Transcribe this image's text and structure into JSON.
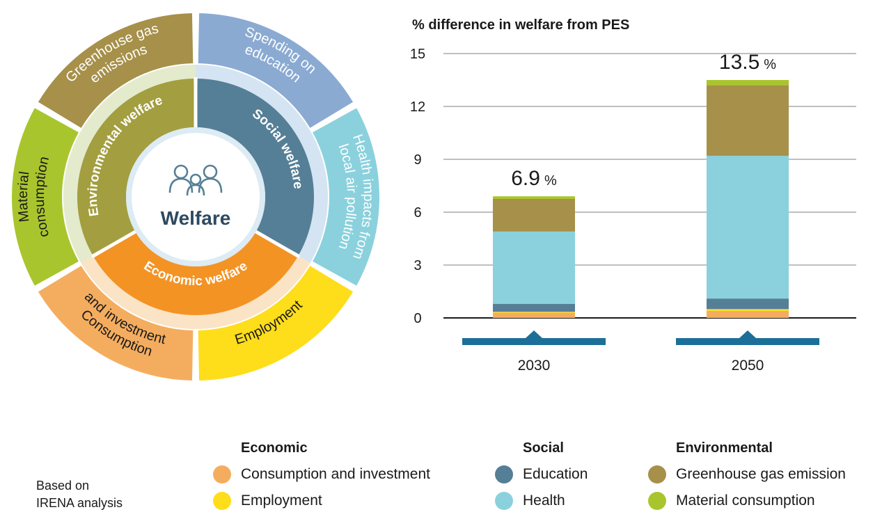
{
  "wheel": {
    "center_label": "Welfare",
    "inner": [
      {
        "key": "social",
        "label": "Social welfare",
        "color": "#557f96"
      },
      {
        "key": "economic",
        "label": "Economic welfare",
        "color": "#f39324"
      },
      {
        "key": "environmental",
        "label": "Environmental welfare",
        "color": "#a39e3f"
      }
    ],
    "outer": [
      {
        "key": "education",
        "lines": [
          "Spending on",
          "education"
        ],
        "color": "#8aaad2"
      },
      {
        "key": "health",
        "lines": [
          "Health impacts from",
          "local air pollution"
        ],
        "color": "#8ad1dd"
      },
      {
        "key": "employment",
        "lines": [
          "Employment"
        ],
        "color": "#fedd1b"
      },
      {
        "key": "consumption",
        "lines": [
          "Consumption",
          "and investment"
        ],
        "color": "#f4ad5f"
      },
      {
        "key": "material",
        "lines": [
          "Material",
          "consumption"
        ],
        "color": "#a9c52d"
      },
      {
        "key": "ghg",
        "lines": [
          "Greenhouse gas",
          "emissions"
        ],
        "color": "#a6904a"
      }
    ]
  },
  "chart_data": {
    "type": "bar",
    "stacked": true,
    "title": "% difference in welfare from PES",
    "categories": [
      "2030",
      "2050"
    ],
    "ylim": [
      0,
      15
    ],
    "yticks": [
      0,
      3,
      6,
      9,
      12,
      15
    ],
    "series": [
      {
        "name": "Consumption and investment",
        "color": "#f4ad5f",
        "values": [
          0.3,
          0.4
        ]
      },
      {
        "name": "Employment",
        "color": "#fedd1b",
        "values": [
          0.05,
          0.1
        ]
      },
      {
        "name": "Education",
        "color": "#557f96",
        "values": [
          0.45,
          0.6
        ]
      },
      {
        "name": "Health",
        "color": "#8ad1dd",
        "values": [
          4.1,
          8.1
        ]
      },
      {
        "name": "Greenhouse gas emission",
        "color": "#a6904a",
        "values": [
          1.85,
          4.0
        ]
      },
      {
        "name": "Material consumption",
        "color": "#a9c52d",
        "values": [
          0.15,
          0.3
        ]
      }
    ],
    "totals": [
      {
        "number": "6.9",
        "unit": "%"
      },
      {
        "number": "13.5",
        "unit": "%"
      }
    ]
  },
  "legend": {
    "groups": [
      {
        "title": "Economic",
        "items": [
          {
            "label": "Consumption and investment",
            "color": "#f4ad5f"
          },
          {
            "label": "Employment",
            "color": "#fedd1b"
          }
        ]
      },
      {
        "title": "Social",
        "items": [
          {
            "label": "Education",
            "color": "#557f96"
          },
          {
            "label": "Health",
            "color": "#8ad1dd"
          }
        ]
      },
      {
        "title": "Environmental",
        "items": [
          {
            "label": "Greenhouse gas emission",
            "color": "#a6904a"
          },
          {
            "label": "Material consumption",
            "color": "#a9c52d"
          }
        ]
      }
    ]
  },
  "note": {
    "line1": "Based on",
    "line2": "IRENA analysis"
  }
}
